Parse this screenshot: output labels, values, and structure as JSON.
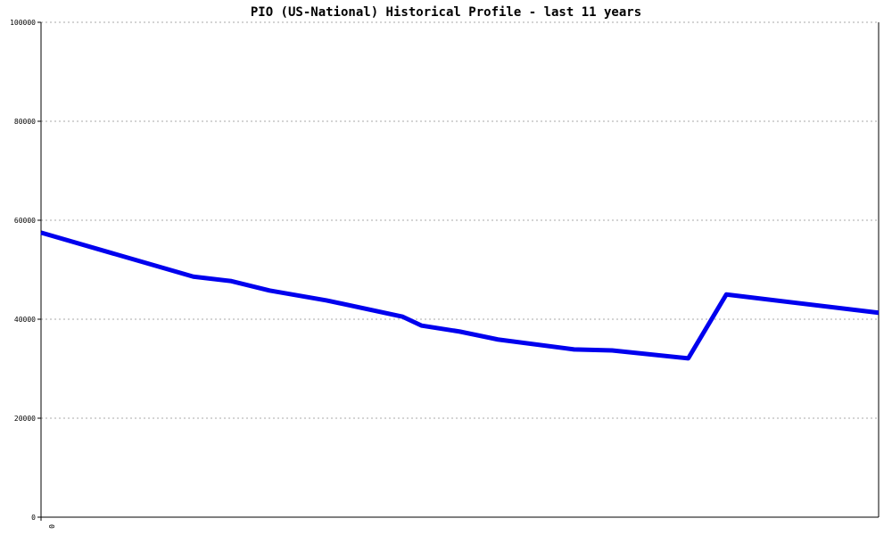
{
  "chart_data": {
    "type": "line",
    "title": "PIO (US-National) Historical Profile - last 11 years",
    "x": [
      0,
      4,
      5,
      6,
      7.5,
      9.5,
      10,
      11,
      12,
      14,
      15,
      17,
      18,
      22
    ],
    "series": [
      {
        "color": "#0000ee",
        "values": [
          57500,
          48600,
          47700,
          45800,
          43800,
          40500,
          38700,
          37500,
          35900,
          33900,
          33700,
          32100,
          45000,
          41300
        ]
      }
    ],
    "xlim": [
      0,
      22
    ],
    "xticks": [
      0
    ],
    "ylim": [
      0,
      100000
    ],
    "yticks": [
      0,
      20000,
      40000,
      60000,
      80000,
      100000
    ],
    "grid": true
  }
}
